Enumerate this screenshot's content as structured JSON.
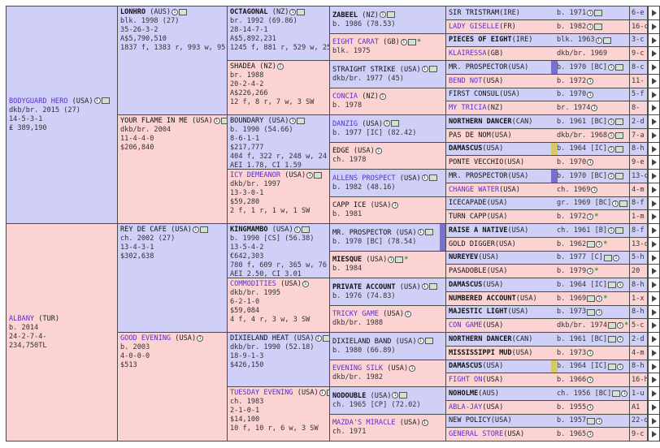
{
  "gen1": [
    {
      "name": "BODYGUARD HERO",
      "country": "(USA)",
      "sex": "m",
      "bold": false,
      "link": true,
      "icons": [
        "info",
        "photo"
      ],
      "star": false,
      "lines": [
        "dkb/br. 2015 (27)",
        "14-5-3-1",
        "₤ 389,190"
      ]
    },
    {
      "name": "ALBANY",
      "country": "(TUR)",
      "sex": "f",
      "bold": false,
      "link": true,
      "icons": [],
      "star": false,
      "lines": [
        "b. 2014",
        "24-2-7-4-",
        "234,750TL"
      ]
    }
  ],
  "gen2": [
    {
      "name": "LONHRO",
      "country": "(AUS)",
      "sex": "m",
      "bold": true,
      "link": false,
      "icons": [
        "info",
        "photo"
      ],
      "star": false,
      "lines": [
        "blk. 1998 (27)",
        "35-26-3-2",
        "A$5,790,510",
        "1837 f, 1383 r, 993 w, 95 SW"
      ]
    },
    {
      "name": "YOUR FLAME IN ME",
      "country": "(USA)",
      "sex": "f",
      "bold": false,
      "link": false,
      "icons": [
        "info",
        "photo"
      ],
      "star": false,
      "lines": [
        "dkb/br. 2004",
        "11-4-4-0",
        "$206,840"
      ]
    },
    {
      "name": "REY DE CAFE",
      "country": "(USA)",
      "sex": "m",
      "bold": false,
      "link": false,
      "icons": [
        "info",
        "photo"
      ],
      "star": false,
      "lines": [
        "ch. 2002 (27)",
        "13-4-3-1",
        "$302,638"
      ]
    },
    {
      "name": "GOOD EVENING",
      "country": "(USA)",
      "sex": "f",
      "bold": false,
      "link": true,
      "icons": [
        "info"
      ],
      "star": false,
      "lines": [
        "b. 2003",
        "4-0-0-0",
        "$513"
      ]
    }
  ],
  "gen3": [
    {
      "name": "OCTAGONAL",
      "country": "(NZ)",
      "sex": "m",
      "bold": true,
      "link": false,
      "icons": [
        "info",
        "photo"
      ],
      "star": false,
      "lines": [
        "br. 1992 (69.86)",
        "28-14-7-1",
        "A$5,892,231",
        "1245 f, 881 r, 529 w, 25 SW"
      ]
    },
    {
      "name": "SHADEA",
      "country": "(NZ)",
      "sex": "f",
      "bold": false,
      "link": false,
      "icons": [
        "info"
      ],
      "star": false,
      "lines": [
        "br. 1988",
        "20-2-4-2",
        "A$226,266",
        "12 f, 8 r, 7 w, 3 SW"
      ]
    },
    {
      "name": "BOUNDARY",
      "country": "(USA)",
      "sex": "m",
      "bold": false,
      "link": false,
      "icons": [
        "info",
        "photo"
      ],
      "star": false,
      "lines": [
        "b. 1990 (54.66)",
        "8-6-1-1",
        "$217,777",
        "404 f, 322 r, 248 w, 24 SW",
        "AEI 1.78, CI 1.59"
      ]
    },
    {
      "name": "ICY DEMEANOR",
      "country": "(USA)",
      "sex": "f",
      "bold": false,
      "link": true,
      "icons": [
        "info",
        "photo"
      ],
      "star": false,
      "lines": [
        "dkb/br. 1997",
        "13-3-0-1",
        "$59,280",
        "2 f, 1 r, 1 w, 1 SW"
      ]
    },
    {
      "name": "KINGMAMBO",
      "country": "(USA)",
      "sex": "m",
      "bold": true,
      "link": false,
      "icons": [
        "info",
        "photo"
      ],
      "star": false,
      "lines": [
        "b. 1990 [CS] (56.38)",
        "13-5-4-2",
        "€642,303",
        "780 f, 609 r, 365 w, 76 SW",
        "AEI 2.50, CI 3.01"
      ]
    },
    {
      "name": "COMMODITIES",
      "country": "(USA)",
      "sex": "f",
      "bold": false,
      "link": true,
      "icons": [
        "info"
      ],
      "star": false,
      "lines": [
        "dkb/br. 1995",
        "6-2-1-0",
        "$59,084",
        "4 f, 4 r, 3 w, 3 SW"
      ]
    },
    {
      "name": "DIXIELAND HEAT",
      "country": "(USA)",
      "sex": "m",
      "bold": false,
      "link": false,
      "icons": [
        "info",
        "photo"
      ],
      "star": false,
      "lines": [
        "dkb/br. 1990 (52.18)",
        "18-9-1-3",
        "$426,150"
      ]
    },
    {
      "name": "TUESDAY EVENING",
      "country": "(USA)",
      "sex": "f",
      "bold": false,
      "link": true,
      "icons": [
        "info",
        "photo"
      ],
      "star": false,
      "lines": [
        "ch. 1983",
        "2-1-0-1",
        "$14,100",
        "10 f, 10 r, 6 w, 3 SW"
      ]
    }
  ],
  "gen4": [
    {
      "name": "ZABEEL",
      "country": "(NZ)",
      "sex": "m",
      "bold": true,
      "link": false,
      "icons": [
        "info",
        "photo"
      ],
      "star": false,
      "lines": [
        "b. 1986 (78.53)"
      ]
    },
    {
      "name": "EIGHT CARAT",
      "country": "(GB)",
      "sex": "f",
      "bold": false,
      "link": true,
      "icons": [
        "info",
        "photo"
      ],
      "star": true,
      "lines": [
        "blk. 1975"
      ]
    },
    {
      "name": "STRAIGHT STRIKE",
      "country": "(USA)",
      "sex": "m",
      "bold": false,
      "link": false,
      "icons": [
        "info",
        "photo"
      ],
      "star": false,
      "lines": [
        "dkb/br. 1977 (45)"
      ]
    },
    {
      "name": "CONCIA",
      "country": "(NZ)",
      "sex": "f",
      "bold": false,
      "link": true,
      "icons": [
        "info"
      ],
      "star": false,
      "lines": [
        "b. 1978"
      ]
    },
    {
      "name": "DANZIG",
      "country": "(USA)",
      "sex": "m",
      "bold": false,
      "link": true,
      "icons": [
        "info",
        "photo"
      ],
      "star": false,
      "lines": [
        "b. 1977 [IC] (82.42)"
      ]
    },
    {
      "name": "EDGE",
      "country": "(USA)",
      "sex": "f",
      "bold": false,
      "link": false,
      "icons": [
        "info"
      ],
      "star": false,
      "lines": [
        "ch. 1978"
      ]
    },
    {
      "name": "ALLENS PROSPECT",
      "country": "(USA)",
      "sex": "m",
      "bold": false,
      "link": true,
      "icons": [
        "info",
        "photo"
      ],
      "star": false,
      "lines": [
        "b. 1982 (48.16)"
      ]
    },
    {
      "name": "CAPP ICE",
      "country": "(USA)",
      "sex": "f",
      "bold": false,
      "link": false,
      "icons": [
        "info"
      ],
      "star": false,
      "lines": [
        "b. 1981"
      ]
    },
    {
      "name": "MR. PROSPECTOR",
      "country": "(USA)",
      "sex": "m",
      "bold": false,
      "link": false,
      "icons": [
        "info",
        "photo"
      ],
      "star": false,
      "lines": [
        "b. 1970 [BC] (78.54)"
      ],
      "bar": "purple"
    },
    {
      "name": "MIESQUE",
      "country": "(USA)",
      "sex": "f",
      "bold": true,
      "link": false,
      "icons": [
        "info",
        "photo"
      ],
      "star": true,
      "lines": [
        "b. 1984"
      ]
    },
    {
      "name": "PRIVATE ACCOUNT",
      "country": "(USA)",
      "sex": "m",
      "bold": true,
      "link": false,
      "icons": [
        "info",
        "photo"
      ],
      "star": false,
      "lines": [
        "b. 1976 (74.83)"
      ]
    },
    {
      "name": "TRICKY GAME",
      "country": "(USA)",
      "sex": "f",
      "bold": false,
      "link": true,
      "icons": [
        "info"
      ],
      "star": false,
      "lines": [
        "dkb/br. 1988"
      ]
    },
    {
      "name": "DIXIELAND BAND",
      "country": "(USA)",
      "sex": "m",
      "bold": false,
      "link": false,
      "icons": [
        "info",
        "photo"
      ],
      "star": false,
      "lines": [
        "b. 1980 (66.89)"
      ]
    },
    {
      "name": "EVENING SILK",
      "country": "(USA)",
      "sex": "f",
      "bold": false,
      "link": true,
      "icons": [
        "info"
      ],
      "star": false,
      "lines": [
        "dkb/br. 1982"
      ]
    },
    {
      "name": "NODOUBLE",
      "country": "(USA)",
      "sex": "m",
      "bold": true,
      "link": false,
      "icons": [
        "info",
        "photo"
      ],
      "star": false,
      "lines": [
        "ch. 1965 [CP] (72.02)"
      ]
    },
    {
      "name": "MAZDA'S MIRACLE",
      "country": "(USA)",
      "sex": "f",
      "bold": false,
      "link": true,
      "icons": [
        "info"
      ],
      "star": false,
      "lines": [
        "ch. 1971"
      ]
    }
  ],
  "gen5": [
    {
      "name": "SIR TRISTRAM",
      "country": "(IRE)",
      "sex": "m",
      "bold": false,
      "link": false,
      "year": "b. 1971",
      "icons": [
        "info",
        "photo"
      ],
      "star": false,
      "trunc": "6-e"
    },
    {
      "name": "LADY GISELLE",
      "country": "(FR)",
      "sex": "f",
      "bold": false,
      "link": true,
      "year": "b. 1982",
      "icons": [
        "info",
        "photo"
      ],
      "star": false,
      "trunc": "16-c"
    },
    {
      "name": "PIECES OF EIGHT",
      "country": "(IRE)",
      "sex": "m",
      "bold": true,
      "link": false,
      "year": "blk. 1963",
      "icons": [
        "info",
        "photo"
      ],
      "star": false,
      "trunc": "3-c"
    },
    {
      "name": "KLAIRESSA",
      "country": "(GB)",
      "sex": "f",
      "bold": false,
      "link": true,
      "year": "dkb/br. 1969",
      "icons": [],
      "star": false,
      "trunc": "9-c"
    },
    {
      "name": "MR. PROSPECTOR",
      "country": "(USA)",
      "sex": "m",
      "bold": false,
      "link": false,
      "year": "b. 1970 [BC]",
      "icons": [
        "info",
        "photo"
      ],
      "star": false,
      "trunc": "8-c",
      "bar": "purple"
    },
    {
      "name": "BEND NOT",
      "country": "(USA)",
      "sex": "f",
      "bold": false,
      "link": true,
      "year": "b. 1972",
      "icons": [
        "info"
      ],
      "star": false,
      "trunc": "11-"
    },
    {
      "name": "FIRST CONSUL",
      "country": "(USA)",
      "sex": "m",
      "bold": false,
      "link": false,
      "year": "b. 1970",
      "icons": [
        "info"
      ],
      "star": false,
      "trunc": "5-f"
    },
    {
      "name": "MY TRICIA",
      "country": "(NZ)",
      "sex": "f",
      "bold": false,
      "link": true,
      "year": "br. 1974",
      "icons": [
        "info"
      ],
      "star": false,
      "trunc": "8-"
    },
    {
      "name": "NORTHERN DANCER",
      "country": "(CAN)",
      "sex": "m",
      "bold": true,
      "link": false,
      "year": "b. 1961 [BC]",
      "icons": [
        "info",
        "photo"
      ],
      "star": false,
      "trunc": "2-d"
    },
    {
      "name": "PAS DE NOM",
      "country": "(USA)",
      "sex": "f",
      "bold": false,
      "link": false,
      "year": "dkb/br. 1968",
      "icons": [
        "info",
        "photo"
      ],
      "star": false,
      "trunc": "7-a"
    },
    {
      "name": "DAMASCUS",
      "country": "(USA)",
      "sex": "m",
      "bold": true,
      "link": false,
      "year": "b. 1964 [IC]",
      "icons": [
        "info",
        "photo"
      ],
      "star": false,
      "trunc": "8-h",
      "bar": "yellow"
    },
    {
      "name": "PONTE VECCHIO",
      "country": "(USA)",
      "sex": "f",
      "bold": false,
      "link": false,
      "year": "b. 1970",
      "icons": [
        "info"
      ],
      "star": false,
      "trunc": "9-e"
    },
    {
      "name": "MR. PROSPECTOR",
      "country": "(USA)",
      "sex": "m",
      "bold": false,
      "link": false,
      "year": "b. 1970 [BC]",
      "icons": [
        "info",
        "photo"
      ],
      "star": false,
      "trunc": "13-c",
      "bar": "purple"
    },
    {
      "name": "CHANGE WATER",
      "country": "(USA)",
      "sex": "f",
      "bold": false,
      "link": true,
      "year": "ch. 1969",
      "icons": [
        "info"
      ],
      "star": false,
      "trunc": "4-m"
    },
    {
      "name": "ICECAPADE",
      "country": "(USA)",
      "sex": "m",
      "bold": false,
      "link": false,
      "year": "gr. 1969 [BC]",
      "icons": [
        "info",
        "photo"
      ],
      "star": false,
      "trunc": "8-f"
    },
    {
      "name": "TURN CAPP",
      "country": "(USA)",
      "sex": "f",
      "bold": false,
      "link": false,
      "year": "b. 1972",
      "icons": [
        "info"
      ],
      "star": true,
      "trunc": "1-m"
    },
    {
      "name": "RAISE A NATIVE",
      "country": "(USA)",
      "sex": "m",
      "bold": true,
      "link": false,
      "year": "ch. 1961 [B]",
      "icons": [
        "info",
        "photo"
      ],
      "star": false,
      "trunc": "8-f"
    },
    {
      "name": "GOLD DIGGER",
      "country": "(USA)",
      "sex": "f",
      "bold": false,
      "link": false,
      "year": "b. 1962",
      "icons": [
        "photo",
        "info"
      ],
      "star": true,
      "trunc": "13-c"
    },
    {
      "name": "NUREYEV",
      "country": "(USA)",
      "sex": "m",
      "bold": true,
      "link": false,
      "year": "b. 1977 [C]",
      "icons": [
        "photo",
        "info"
      ],
      "star": false,
      "trunc": "5-h"
    },
    {
      "name": "PASADOBLE",
      "country": "(USA)",
      "sex": "f",
      "bold": false,
      "link": false,
      "year": "b. 1979",
      "icons": [
        "info"
      ],
      "star": true,
      "trunc": "20"
    },
    {
      "name": "DAMASCUS",
      "country": "(USA)",
      "sex": "m",
      "bold": true,
      "link": false,
      "year": "b. 1964 [IC]",
      "icons": [
        "photo",
        "info"
      ],
      "star": false,
      "trunc": "8-h"
    },
    {
      "name": "NUMBERED ACCOUNT",
      "country": "(USA)",
      "sex": "f",
      "bold": true,
      "link": false,
      "year": "b. 1969",
      "icons": [
        "photo",
        "info"
      ],
      "star": true,
      "trunc": "1-x"
    },
    {
      "name": "MAJESTIC LIGHT",
      "country": "(USA)",
      "sex": "m",
      "bold": true,
      "link": false,
      "year": "b. 1973",
      "icons": [
        "photo",
        "info"
      ],
      "star": false,
      "trunc": "8-h"
    },
    {
      "name": "CON GAME",
      "country": "(USA)",
      "sex": "f",
      "bold": false,
      "link": true,
      "year": "dkb/br. 1974",
      "icons": [
        "photo",
        "info"
      ],
      "star": true,
      "trunc": "5-c"
    },
    {
      "name": "NORTHERN DANCER",
      "country": "(CAN)",
      "sex": "m",
      "bold": true,
      "link": false,
      "year": "b. 1961 [BC]",
      "icons": [
        "photo",
        "info"
      ],
      "star": false,
      "trunc": "2-d"
    },
    {
      "name": "MISSISSIPPI MUD",
      "country": "(USA)",
      "sex": "f",
      "bold": true,
      "link": false,
      "year": "b. 1973",
      "icons": [
        "info"
      ],
      "star": false,
      "trunc": "4-m"
    },
    {
      "name": "DAMASCUS",
      "country": "(USA)",
      "sex": "m",
      "bold": true,
      "link": false,
      "year": "b. 1964 [IC]",
      "icons": [
        "photo",
        "info"
      ],
      "star": false,
      "trunc": "8-h",
      "bar": "yellow"
    },
    {
      "name": "FIGHT ON",
      "country": "(USA)",
      "sex": "f",
      "bold": false,
      "link": true,
      "year": "b. 1966",
      "icons": [
        "info"
      ],
      "star": false,
      "trunc": "16-h"
    },
    {
      "name": "NOHOLME",
      "country": "(AUS)",
      "sex": "m",
      "bold": true,
      "link": false,
      "year": "ch. 1956 [BC]",
      "icons": [
        "photo",
        "info"
      ],
      "star": false,
      "trunc": "1-u"
    },
    {
      "name": "ABLA-JAY",
      "country": "(USA)",
      "sex": "f",
      "bold": false,
      "link": true,
      "year": "b. 1955",
      "icons": [
        "info"
      ],
      "star": false,
      "trunc": "A1"
    },
    {
      "name": "NEW POLICY",
      "country": "(USA)",
      "sex": "m",
      "bold": false,
      "link": false,
      "year": "b. 1957",
      "icons": [
        "photo",
        "info"
      ],
      "star": false,
      "trunc": "22-d"
    },
    {
      "name": "GENERAL STORE",
      "country": "(USA)",
      "sex": "f",
      "bold": false,
      "link": true,
      "year": "b. 1965",
      "icons": [
        "info"
      ],
      "star": false,
      "trunc": "9-c"
    }
  ],
  "icons": {
    "info": "info-icon",
    "photo": "photo-icon",
    "star": "star-icon",
    "arrow": "arrow-right-icon"
  },
  "colors": {
    "male": "#cfcff8",
    "female": "#fbd3d3",
    "link": "#5a2fd0",
    "bar_purple": "#7a6fd0",
    "bar_yellow": "#d6c96a"
  }
}
